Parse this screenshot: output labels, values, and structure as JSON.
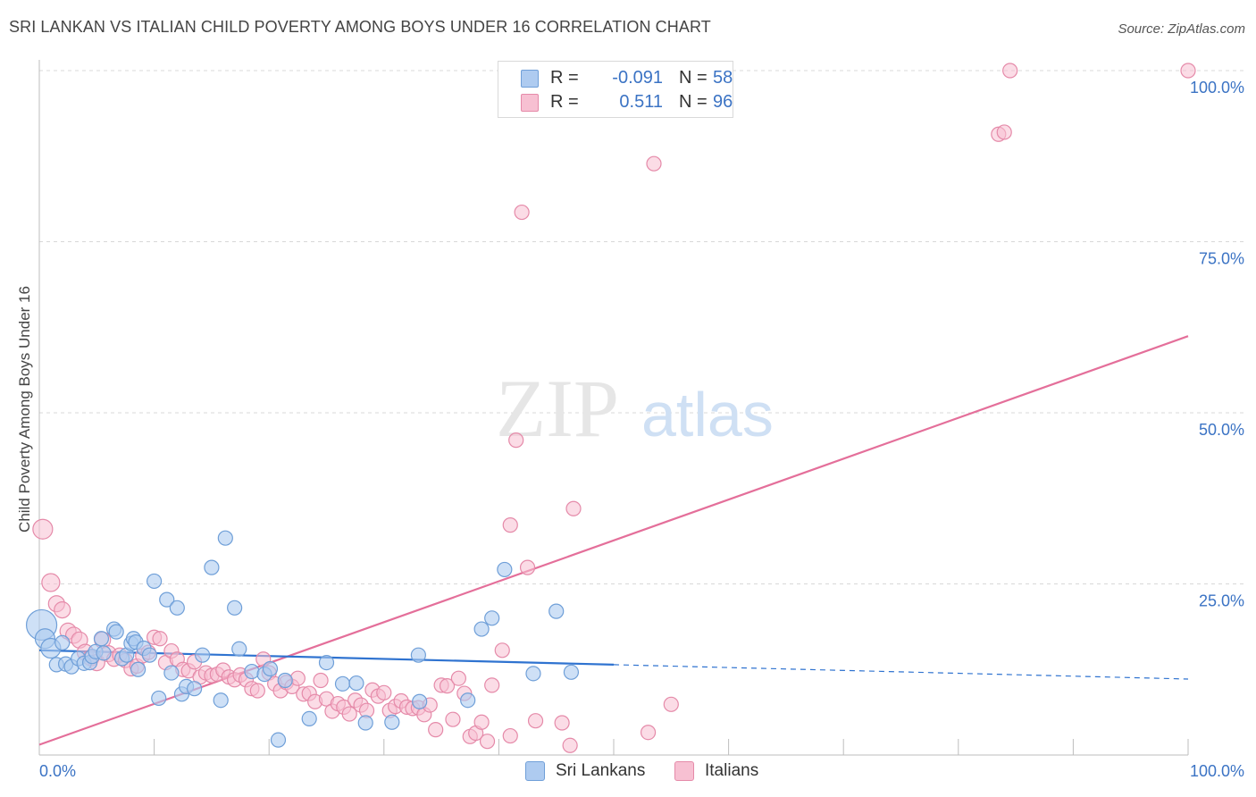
{
  "title": "SRI LANKAN VS ITALIAN CHILD POVERTY AMONG BOYS UNDER 16 CORRELATION CHART",
  "source": "Source: ZipAtlas.com",
  "watermark": {
    "zip": "ZIP",
    "atlas": "atlas"
  },
  "legend": {
    "rows": [
      {
        "r_label": "R =",
        "r_value": "-0.091",
        "n_label": "N =",
        "n_value": "58"
      },
      {
        "r_label": "R =",
        "r_value": "0.511",
        "n_label": "N =",
        "n_value": "96"
      }
    ]
  },
  "bottom_legend": [
    "Sri Lankans",
    "Italians"
  ],
  "colors": {
    "sri_fill": "#aecbf0",
    "sri_stroke": "#6f9fd8",
    "sri_line": "#2f73d0",
    "ita_fill": "#f7c0d2",
    "ita_stroke": "#e58aa9",
    "ita_line": "#e46f9a",
    "tick_text": "#3b73c4",
    "grid": "#d8d8d8"
  },
  "chart_data": {
    "type": "scatter",
    "title": "SRI LANKAN VS ITALIAN CHILD POVERTY AMONG BOYS UNDER 16 CORRELATION CHART",
    "xlabel": "",
    "ylabel": "Child Poverty Among Boys Under 16",
    "xlim": [
      0,
      100
    ],
    "ylim": [
      0,
      100
    ],
    "x_tick_labels": [
      "0.0%",
      "100.0%"
    ],
    "y_ticks": [
      25,
      50,
      75,
      100
    ],
    "y_tick_labels": [
      "25.0%",
      "50.0%",
      "75.0%",
      "100.0%"
    ],
    "grid": true,
    "legend_position": "top-center",
    "series": [
      {
        "name": "Sri Lankans",
        "R": -0.091,
        "N": 58,
        "trend": {
          "x0": 0,
          "y0": 15.3,
          "x1": 50,
          "y1": 13.2,
          "dashed_to_x": 100,
          "dashed_to_y": 11.1
        },
        "points": [
          [
            0.2,
            19.0
          ],
          [
            0.5,
            17.0
          ],
          [
            1.0,
            15.6
          ],
          [
            1.5,
            13.2
          ],
          [
            2.0,
            16.4
          ],
          [
            2.3,
            13.3
          ],
          [
            2.8,
            12.9
          ],
          [
            3.4,
            14.1
          ],
          [
            3.9,
            13.4
          ],
          [
            4.4,
            13.5
          ],
          [
            4.6,
            14.4
          ],
          [
            4.9,
            15.1
          ],
          [
            5.4,
            17.0
          ],
          [
            5.6,
            14.9
          ],
          [
            6.5,
            18.4
          ],
          [
            6.7,
            18.0
          ],
          [
            7.2,
            14.1
          ],
          [
            7.6,
            14.6
          ],
          [
            8.0,
            16.3
          ],
          [
            8.2,
            17.0
          ],
          [
            8.4,
            16.5
          ],
          [
            8.6,
            12.5
          ],
          [
            9.1,
            15.6
          ],
          [
            9.6,
            14.6
          ],
          [
            10.0,
            25.4
          ],
          [
            10.4,
            8.3
          ],
          [
            11.1,
            22.7
          ],
          [
            11.5,
            12.0
          ],
          [
            12.0,
            21.5
          ],
          [
            12.4,
            8.9
          ],
          [
            12.8,
            10.0
          ],
          [
            13.5,
            9.7
          ],
          [
            14.2,
            14.6
          ],
          [
            15.0,
            27.4
          ],
          [
            15.8,
            8.0
          ],
          [
            16.2,
            31.7
          ],
          [
            17.0,
            21.5
          ],
          [
            17.4,
            15.5
          ],
          [
            18.5,
            12.2
          ],
          [
            19.6,
            11.8
          ],
          [
            20.1,
            12.6
          ],
          [
            20.8,
            2.2
          ],
          [
            21.4,
            10.9
          ],
          [
            23.5,
            5.3
          ],
          [
            25.0,
            13.5
          ],
          [
            26.4,
            10.4
          ],
          [
            27.6,
            10.5
          ],
          [
            28.4,
            4.7
          ],
          [
            30.7,
            4.8
          ],
          [
            33.0,
            14.6
          ],
          [
            33.1,
            7.8
          ],
          [
            37.3,
            8.0
          ],
          [
            38.5,
            18.4
          ],
          [
            39.4,
            20.0
          ],
          [
            40.5,
            27.1
          ],
          [
            43.0,
            11.9
          ],
          [
            45.0,
            21.0
          ],
          [
            46.3,
            12.1
          ]
        ]
      },
      {
        "name": "Italians",
        "R": 0.511,
        "N": 96,
        "trend": {
          "x0": 0,
          "y0": 1.5,
          "x1": 100,
          "y1": 61.2
        },
        "points": [
          [
            0.3,
            33.0
          ],
          [
            1.0,
            25.2
          ],
          [
            1.5,
            22.1
          ],
          [
            2.0,
            21.2
          ],
          [
            2.5,
            18.1
          ],
          [
            3.0,
            17.5
          ],
          [
            3.5,
            16.8
          ],
          [
            4.0,
            15.0
          ],
          [
            4.5,
            14.2
          ],
          [
            5.0,
            13.5
          ],
          [
            5.5,
            16.8
          ],
          [
            6.0,
            14.8
          ],
          [
            6.5,
            14.0
          ],
          [
            7.0,
            14.6
          ],
          [
            7.5,
            13.8
          ],
          [
            8.0,
            12.6
          ],
          [
            8.5,
            13.0
          ],
          [
            9.0,
            14.5
          ],
          [
            9.5,
            15.0
          ],
          [
            10.0,
            17.2
          ],
          [
            10.5,
            17.0
          ],
          [
            11.0,
            13.5
          ],
          [
            11.5,
            15.2
          ],
          [
            12.0,
            14.0
          ],
          [
            12.5,
            12.5
          ],
          [
            13.0,
            12.3
          ],
          [
            13.5,
            13.6
          ],
          [
            14.0,
            11.4
          ],
          [
            14.5,
            12.0
          ],
          [
            15.0,
            11.6
          ],
          [
            15.5,
            11.8
          ],
          [
            16.0,
            12.4
          ],
          [
            16.5,
            11.4
          ],
          [
            17.0,
            11.0
          ],
          [
            17.5,
            11.7
          ],
          [
            18.0,
            11.0
          ],
          [
            18.5,
            9.7
          ],
          [
            19.0,
            9.4
          ],
          [
            19.5,
            14.0
          ],
          [
            20.0,
            12.0
          ],
          [
            20.5,
            10.4
          ],
          [
            21.0,
            9.4
          ],
          [
            21.5,
            10.6
          ],
          [
            22.0,
            10.0
          ],
          [
            22.5,
            11.2
          ],
          [
            23.0,
            8.9
          ],
          [
            23.5,
            9.0
          ],
          [
            24.0,
            7.8
          ],
          [
            24.5,
            10.9
          ],
          [
            25.0,
            8.2
          ],
          [
            25.5,
            6.4
          ],
          [
            26.0,
            7.5
          ],
          [
            26.5,
            7.0
          ],
          [
            27.0,
            6.0
          ],
          [
            27.5,
            8.0
          ],
          [
            28.0,
            7.3
          ],
          [
            28.5,
            6.5
          ],
          [
            29.0,
            9.5
          ],
          [
            29.5,
            8.6
          ],
          [
            30.0,
            9.1
          ],
          [
            30.5,
            6.5
          ],
          [
            31.0,
            7.1
          ],
          [
            31.5,
            7.9
          ],
          [
            32.0,
            7.0
          ],
          [
            32.5,
            6.8
          ],
          [
            33.0,
            6.9
          ],
          [
            33.5,
            5.9
          ],
          [
            34.0,
            7.3
          ],
          [
            34.5,
            3.7
          ],
          [
            35.0,
            10.2
          ],
          [
            35.5,
            10.1
          ],
          [
            36.0,
            5.2
          ],
          [
            36.5,
            11.2
          ],
          [
            37.0,
            9.0
          ],
          [
            37.5,
            2.7
          ],
          [
            38.0,
            3.2
          ],
          [
            38.5,
            4.8
          ],
          [
            39.0,
            2.0
          ],
          [
            39.4,
            10.2
          ],
          [
            40.3,
            15.3
          ],
          [
            41.0,
            2.8
          ],
          [
            41.5,
            46.0
          ],
          [
            42.0,
            79.3
          ],
          [
            41.0,
            33.6
          ],
          [
            42.5,
            27.4
          ],
          [
            43.2,
            5.0
          ],
          [
            45.5,
            4.7
          ],
          [
            46.2,
            1.4
          ],
          [
            46.5,
            36.0
          ],
          [
            53.0,
            3.3
          ],
          [
            53.5,
            86.4
          ],
          [
            55.0,
            7.4
          ],
          [
            83.5,
            90.7
          ],
          [
            84.0,
            91.0
          ],
          [
            84.5,
            100.0
          ],
          [
            100.0,
            100.0
          ]
        ]
      }
    ]
  }
}
